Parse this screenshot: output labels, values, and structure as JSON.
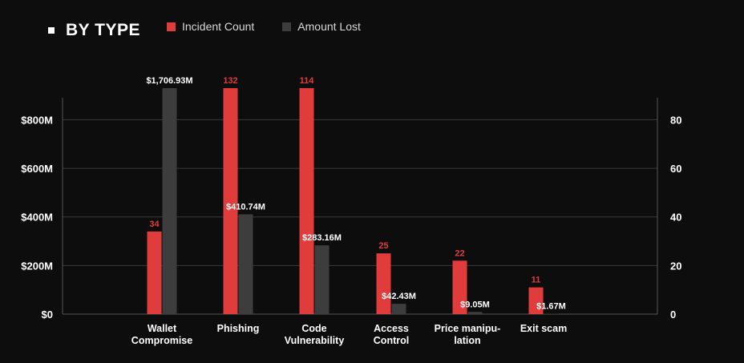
{
  "header": {
    "title": "BY TYPE"
  },
  "legend": [
    {
      "label": "Incident Count",
      "color": "#e03c3c"
    },
    {
      "label": "Amount Lost",
      "color": "#3d3d3d"
    }
  ],
  "chart_data": {
    "type": "bar",
    "categories": [
      [
        "Wallet",
        "Compromise"
      ],
      [
        "Phishing"
      ],
      [
        "Code",
        "Vulnerability"
      ],
      [
        "Access",
        "Control"
      ],
      [
        "Price manipu-",
        "lation"
      ],
      [
        "Exit scam"
      ]
    ],
    "series": [
      {
        "name": "Incident Count",
        "axis": "right",
        "color": "#e03c3c",
        "values": [
          34,
          132,
          114,
          25,
          22,
          11
        ],
        "labels": [
          "34",
          "132",
          "114",
          "25",
          "22",
          "11"
        ]
      },
      {
        "name": "Amount Lost",
        "axis": "left",
        "color": "#3d3d3d",
        "values": [
          1706.93,
          410.74,
          283.16,
          42.43,
          9.05,
          1.67
        ],
        "labels": [
          "$1,706.93M",
          "$410.74M",
          "$283.16M",
          "$42.43M",
          "$9.05M",
          "$1.67M"
        ]
      }
    ],
    "left_axis": {
      "ticks": [
        0,
        200,
        400,
        600,
        800
      ],
      "tick_labels": [
        "$0",
        "$200M",
        "$400M",
        "$600M",
        "$800M"
      ],
      "display_max": 930
    },
    "right_axis": {
      "ticks": [
        0,
        20,
        40,
        60,
        80
      ],
      "tick_labels": [
        "0",
        "20",
        "40",
        "60",
        "80"
      ],
      "display_max": 93
    },
    "grid": true,
    "legend_position": "top"
  }
}
